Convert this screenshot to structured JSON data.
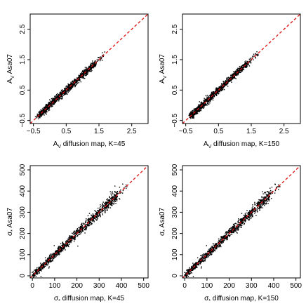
{
  "chart_data": [
    {
      "type": "scatter",
      "xlabel": "A_V diffusion map, K=45",
      "ylabel": "A_V Asa07",
      "xlim": [
        -0.6,
        3.0
      ],
      "ylim": [
        -0.6,
        3.0
      ],
      "xticks": [
        "-0.5",
        "0.5",
        "1.5",
        "2.5"
      ],
      "yticks": [
        "-0.5",
        "0.5",
        "1.5",
        "2.5"
      ],
      "reference_line": "y = x (red dashed)",
      "point_summary": "dense black points scattered along y = x, mostly between A_V -0.4 and 1.5"
    },
    {
      "type": "scatter",
      "xlabel": "A_V diffusion map, K=150",
      "ylabel": "A_V Asa07",
      "xlim": [
        -0.6,
        3.0
      ],
      "ylim": [
        -0.6,
        3.0
      ],
      "xticks": [
        "-0.5",
        "0.5",
        "1.5",
        "2.5"
      ],
      "yticks": [
        "-0.5",
        "0.5",
        "1.5",
        "2.5"
      ],
      "reference_line": "y = x (red dashed)",
      "point_summary": "dense black points scattered along y = x, mostly between A_V -0.4 and 1.4"
    },
    {
      "type": "scatter",
      "xlabel": "σ* diffusion map, K=45",
      "ylabel": "σ* Asa07",
      "xlim": [
        -10,
        520
      ],
      "ylim": [
        -10,
        520
      ],
      "xticks": [
        "0",
        "100",
        "200",
        "300",
        "400",
        "500"
      ],
      "yticks": [
        "0",
        "100",
        "200",
        "300",
        "400",
        "500"
      ],
      "reference_line": "y = x (red dashed)",
      "point_summary": "dense black points scattered along y = x, mostly between σ* 0 and 430"
    },
    {
      "type": "scatter",
      "xlabel": "σ* diffusion map, K=150",
      "ylabel": "σ* Asa07",
      "xlim": [
        -10,
        520
      ],
      "ylim": [
        -10,
        520
      ],
      "xticks": [
        "0",
        "100",
        "200",
        "300",
        "400",
        "500"
      ],
      "yticks": [
        "0",
        "100",
        "200",
        "300",
        "400",
        "500"
      ],
      "reference_line": "y = x (red dashed)",
      "point_summary": "dense black points scattered along y = x, mostly between σ* 0 and 430"
    }
  ],
  "colors": {
    "points": "#000000",
    "reference_line": "#dd1111",
    "axes": "#000000"
  }
}
